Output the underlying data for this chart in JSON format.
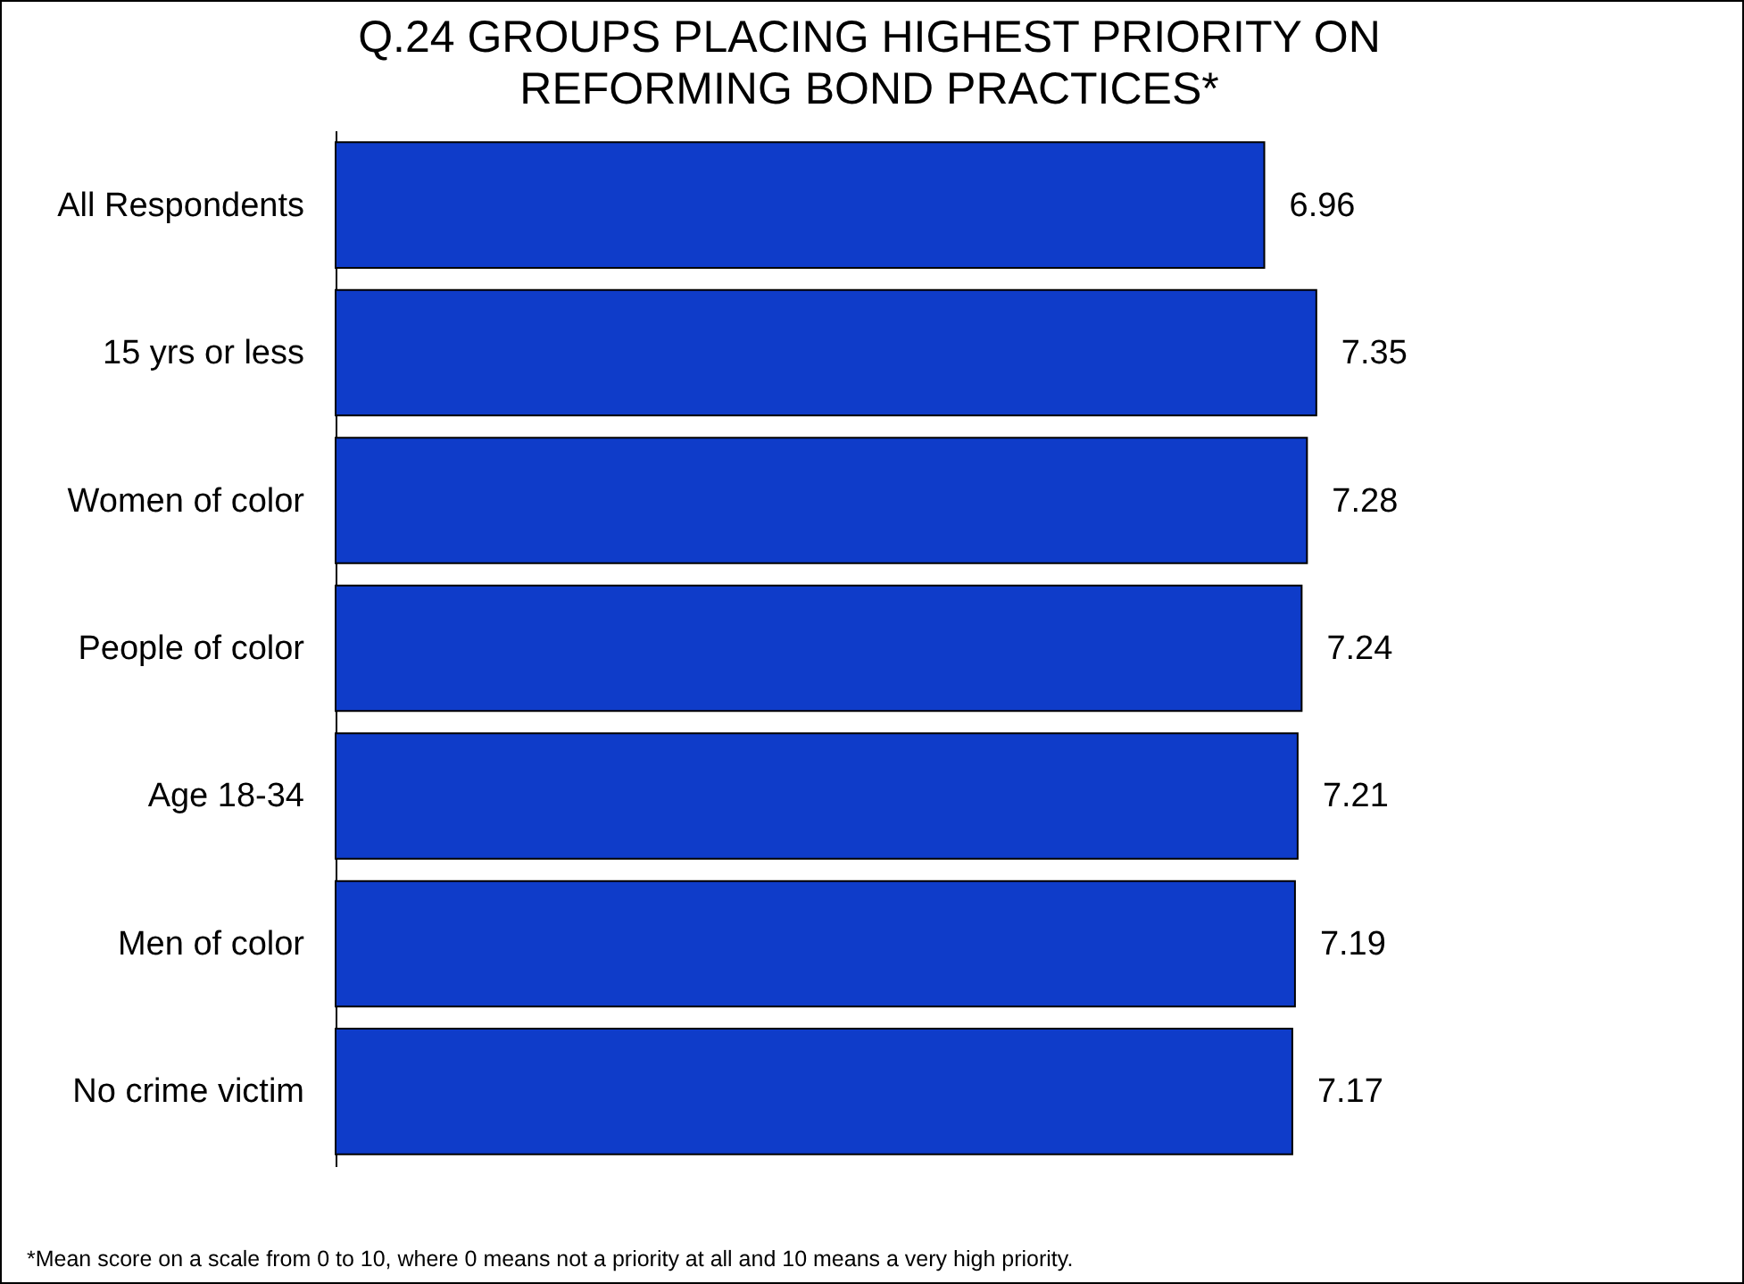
{
  "chart_data": {
    "type": "bar",
    "orientation": "horizontal",
    "title": "Q.24 GROUPS PLACING HIGHEST PRIORITY ON REFORMING BOND PRACTICES*",
    "categories": [
      "All Respondents",
      "15 yrs or less",
      "Women of color",
      "People of color",
      "Age 18-34",
      "Men of color",
      "No crime victim"
    ],
    "values": [
      6.96,
      7.35,
      7.28,
      7.24,
      7.21,
      7.19,
      7.17
    ],
    "color": "#0f3cc9",
    "data_labels": true,
    "annotations": [
      "*Mean score on a scale from 0 to 10, where 0 means not a priority at all and 10 means a very high priority."
    ]
  }
}
